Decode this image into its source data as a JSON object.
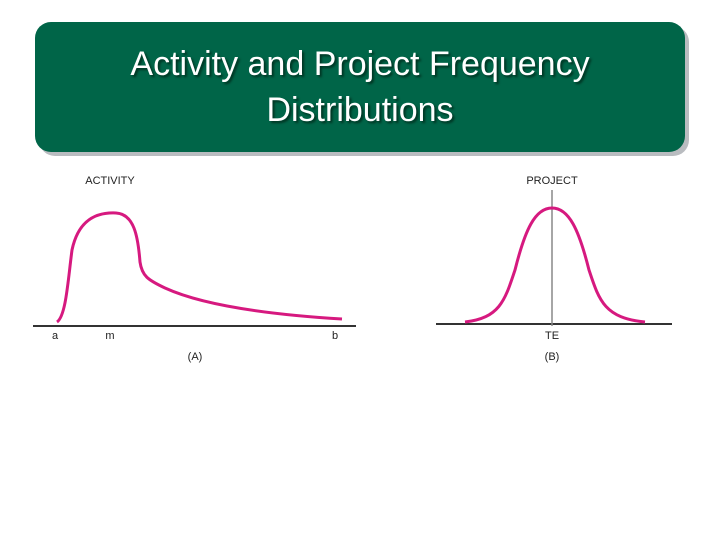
{
  "title": "Activity and Project Frequency Distributions",
  "panels": [
    {
      "heading": "ACTIVITY",
      "labels": [
        "a",
        "m",
        "b"
      ],
      "caption": "(A)"
    },
    {
      "heading": "PROJECT",
      "labels": [
        "TE"
      ],
      "caption": "(B)"
    }
  ]
}
